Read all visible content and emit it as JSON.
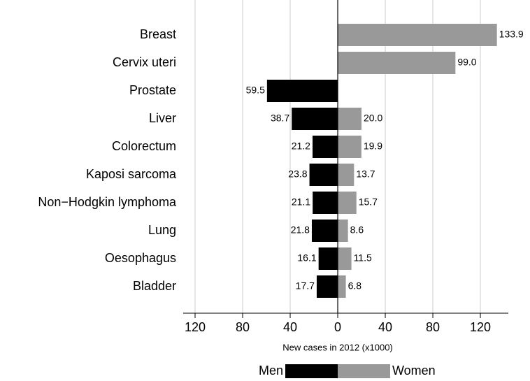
{
  "chart_data": {
    "type": "butterfly",
    "categories": [
      "Breast",
      "Cervix uteri",
      "Prostate",
      "Liver",
      "Colorectum",
      "Kaposi sarcoma",
      "Non−Hodgkin lymphoma",
      "Lung",
      "Oesophagus",
      "Bladder"
    ],
    "series": [
      {
        "name": "Men",
        "color": "#000000",
        "values": [
          null,
          null,
          59.5,
          38.7,
          21.2,
          23.8,
          21.1,
          21.8,
          16.1,
          17.7
        ],
        "value_labels": [
          null,
          null,
          "59.5",
          "38.7",
          "21.2",
          "23.8",
          "21.1",
          "21.8",
          "16.1",
          "17.7"
        ]
      },
      {
        "name": "Women",
        "color": "#999999",
        "values": [
          133.9,
          99,
          null,
          20,
          19.9,
          13.7,
          15.7,
          8.6,
          11.5,
          6.8
        ],
        "value_labels": [
          "133.9",
          "99.0",
          null,
          "20.0",
          "19.9",
          "13.7",
          "15.7",
          "8.6",
          "11.5",
          "6.8"
        ]
      }
    ],
    "xlabel": "New cases in 2012 (x1000)",
    "xlim": [
      -130,
      143.5
    ],
    "xticks": [
      {
        "value": -120,
        "label": "120"
      },
      {
        "value": -80,
        "label": "80"
      },
      {
        "value": -40,
        "label": "40"
      },
      0,
      40,
      80,
      120
    ],
    "grid": true
  }
}
